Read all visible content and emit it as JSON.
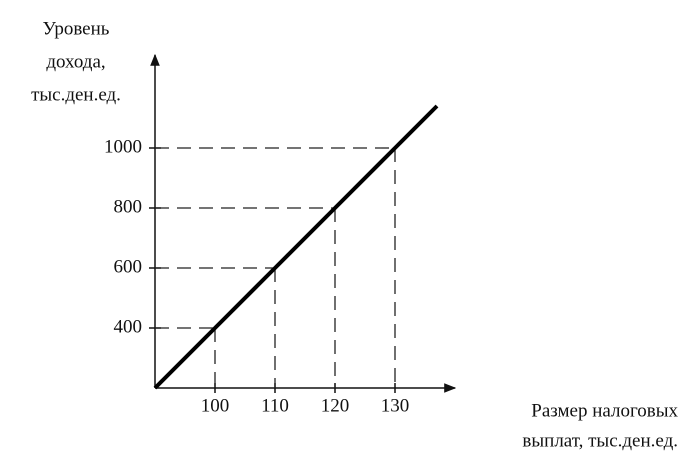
{
  "chart_data": {
    "type": "line",
    "ylabel": [
      "Уровень",
      "дохода,",
      "тыс.ден.ед."
    ],
    "xlabel": [
      "Размер налоговых",
      "выплат, тыс.ден.ед."
    ],
    "x": [
      90,
      100,
      110,
      120,
      130,
      137
    ],
    "series": [
      {
        "color": "#000000",
        "values": [
          200,
          400,
          600,
          800,
          1000,
          1140
        ]
      }
    ],
    "xlim": [
      90,
      140
    ],
    "ylim": [
      200,
      1310
    ],
    "xticks": [
      100,
      110,
      120,
      130
    ],
    "yticks": [
      400,
      600,
      800,
      1000
    ],
    "guides": true
  }
}
